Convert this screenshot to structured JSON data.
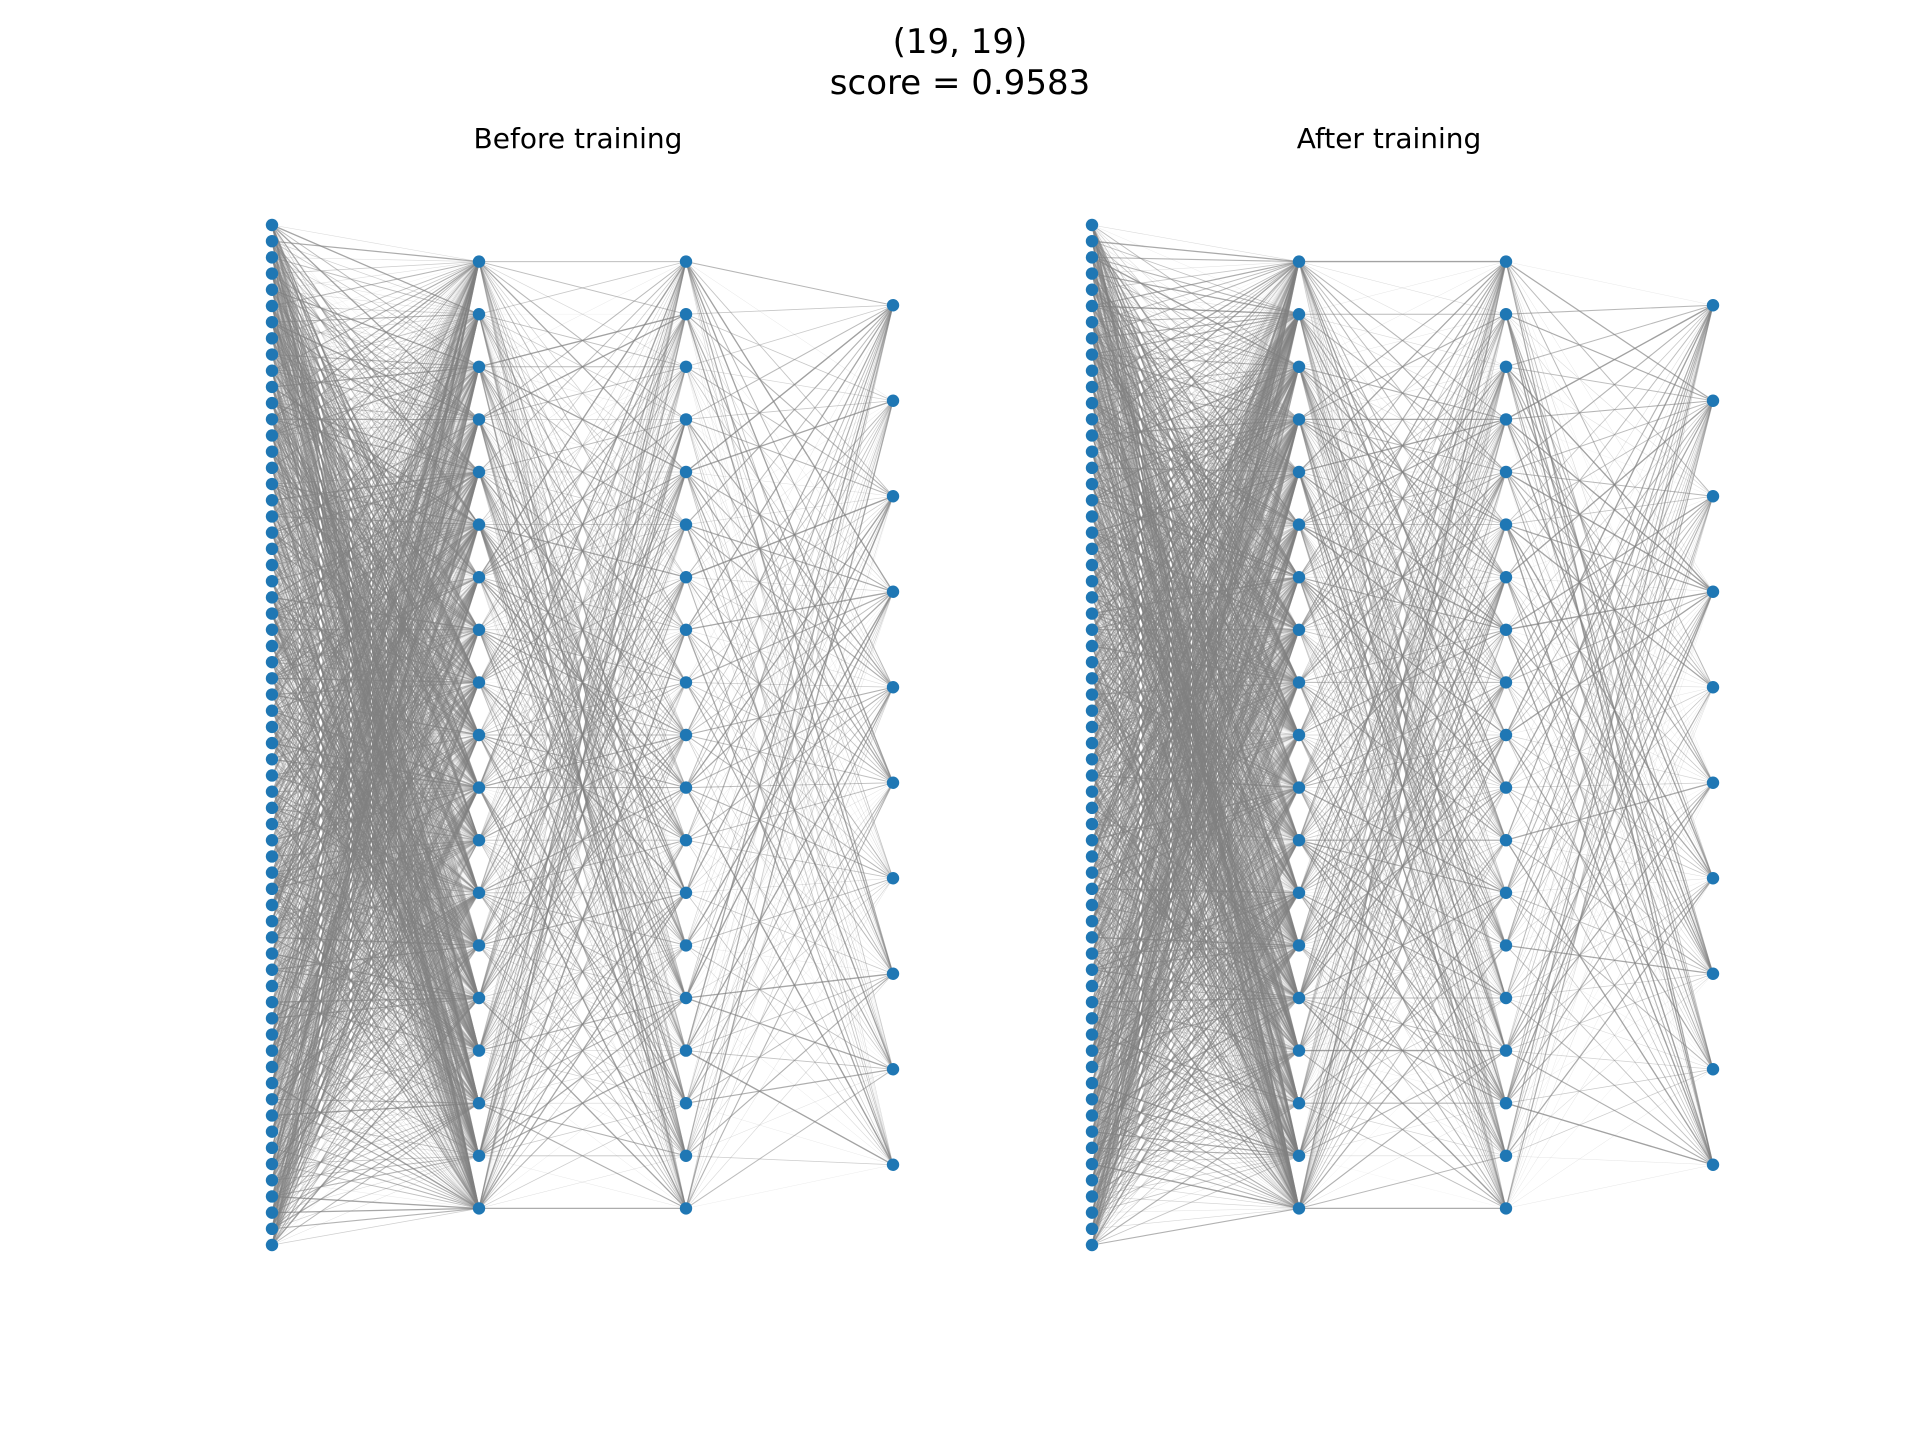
{
  "figure": {
    "title_line1": "(19, 19)",
    "title_line2": "score = 0.9583"
  },
  "panels": [
    {
      "title": "Before training",
      "weight_seed": 7
    },
    {
      "title": "After training",
      "weight_seed": 42
    }
  ],
  "network": {
    "layers": [
      64,
      19,
      19,
      10
    ]
  },
  "colors": {
    "node": "#1f77b4",
    "edge": "#808080",
    "background": "#ffffff"
  }
}
